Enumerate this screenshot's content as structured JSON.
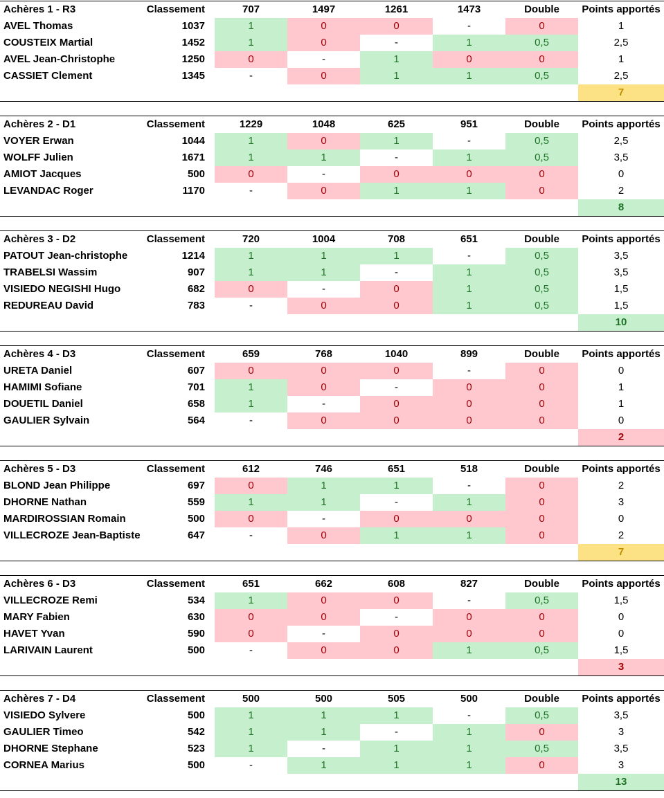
{
  "columns": {
    "classement_label": "Classement",
    "double_label": "Double",
    "points_label": "Points apportés"
  },
  "colors": {
    "win_bg": "#C6EFCE",
    "win_text": "#1E7125",
    "loss_bg": "#FFC7CE",
    "loss_text": "#9C0006",
    "yellow_bg": "#FCE285",
    "yellow_text": "#BF8F00"
  },
  "teams": [
    {
      "title": "Achères 1 - R3",
      "opponents": [
        "707",
        "1497",
        "1261",
        "1473"
      ],
      "players": [
        {
          "name": "AVEL Thomas",
          "classement": "1037",
          "results": [
            "1",
            "0",
            "0",
            "-"
          ],
          "double": "0",
          "points": "1"
        },
        {
          "name": "COUSTEIX Martial",
          "classement": "1452",
          "results": [
            "1",
            "0",
            "-",
            "1"
          ],
          "double": "0,5",
          "points": "2,5"
        },
        {
          "name": "AVEL Jean-Christophe",
          "classement": "1250",
          "results": [
            "0",
            "-",
            "1",
            "0"
          ],
          "double": "0",
          "points": "1"
        },
        {
          "name": "CASSIET Clement",
          "classement": "1345",
          "results": [
            "-",
            "0",
            "1",
            "1"
          ],
          "double": "0,5",
          "points": "2,5"
        }
      ],
      "total": {
        "value": "7",
        "status": "yellow"
      }
    },
    {
      "title": "Achères 2 - D1",
      "opponents": [
        "1229",
        "1048",
        "625",
        "951"
      ],
      "players": [
        {
          "name": "VOYER Erwan",
          "classement": "1044",
          "results": [
            "1",
            "0",
            "1",
            "-"
          ],
          "double": "0,5",
          "points": "2,5"
        },
        {
          "name": "WOLFF Julien",
          "classement": "1671",
          "results": [
            "1",
            "1",
            "-",
            "1"
          ],
          "double": "0,5",
          "points": "3,5"
        },
        {
          "name": "AMIOT Jacques",
          "classement": "500",
          "results": [
            "0",
            "-",
            "0",
            "0"
          ],
          "double": "0",
          "points": "0"
        },
        {
          "name": "LEVANDAC Roger",
          "classement": "1170",
          "results": [
            "-",
            "0",
            "1",
            "1"
          ],
          "double": "0",
          "points": "2"
        }
      ],
      "total": {
        "value": "8",
        "status": "green"
      }
    },
    {
      "title": "Achères 3 - D2",
      "opponents": [
        "720",
        "1004",
        "708",
        "651"
      ],
      "players": [
        {
          "name": "PATOUT Jean-christophe",
          "classement": "1214",
          "results": [
            "1",
            "1",
            "1",
            "-"
          ],
          "double": "0,5",
          "points": "3,5"
        },
        {
          "name": "TRABELSI Wassim",
          "classement": "907",
          "results": [
            "1",
            "1",
            "-",
            "1"
          ],
          "double": "0,5",
          "points": "3,5"
        },
        {
          "name": "VISIEDO NEGISHI Hugo",
          "classement": "682",
          "results": [
            "0",
            "-",
            "0",
            "1"
          ],
          "double": "0,5",
          "points": "1,5"
        },
        {
          "name": "REDUREAU David",
          "classement": "783",
          "results": [
            "-",
            "0",
            "0",
            "1"
          ],
          "double": "0,5",
          "points": "1,5"
        }
      ],
      "total": {
        "value": "10",
        "status": "green"
      }
    },
    {
      "title": "Achères 4 - D3",
      "opponents": [
        "659",
        "768",
        "1040",
        "899"
      ],
      "players": [
        {
          "name": "URETA Daniel",
          "classement": "607",
          "results": [
            "0",
            "0",
            "0",
            "-"
          ],
          "double": "0",
          "points": "0"
        },
        {
          "name": "HAMIMI Sofiane",
          "classement": "701",
          "results": [
            "1",
            "0",
            "-",
            "0"
          ],
          "double": "0",
          "points": "1"
        },
        {
          "name": "DOUETIL Daniel",
          "classement": "658",
          "results": [
            "1",
            "-",
            "0",
            "0"
          ],
          "double": "0",
          "points": "1"
        },
        {
          "name": "GAULIER Sylvain",
          "classement": "564",
          "results": [
            "-",
            "0",
            "0",
            "0"
          ],
          "double": "0",
          "points": "0"
        }
      ],
      "total": {
        "value": "2",
        "status": "red"
      }
    },
    {
      "title": "Achères 5 - D3",
      "opponents": [
        "612",
        "746",
        "651",
        "518"
      ],
      "players": [
        {
          "name": "BLOND Jean Philippe",
          "classement": "697",
          "results": [
            "0",
            "1",
            "1",
            "-"
          ],
          "double": "0",
          "points": "2"
        },
        {
          "name": "DHORNE Nathan",
          "classement": "559",
          "results": [
            "1",
            "1",
            "-",
            "1"
          ],
          "double": "0",
          "points": "3"
        },
        {
          "name": "MARDIROSSIAN Romain",
          "classement": "500",
          "results": [
            "0",
            "-",
            "0",
            "0"
          ],
          "double": "0",
          "points": "0"
        },
        {
          "name": "VILLECROZE Jean-Baptiste",
          "classement": "647",
          "results": [
            "-",
            "0",
            "1",
            "1"
          ],
          "double": "0",
          "points": "2"
        }
      ],
      "total": {
        "value": "7",
        "status": "yellow"
      }
    },
    {
      "title": "Achères 6 - D3",
      "opponents": [
        "651",
        "662",
        "608",
        "827"
      ],
      "players": [
        {
          "name": "VILLECROZE Remi",
          "classement": "534",
          "results": [
            "1",
            "0",
            "0",
            "-"
          ],
          "double": "0,5",
          "points": "1,5"
        },
        {
          "name": "MARY Fabien",
          "classement": "630",
          "results": [
            "0",
            "0",
            "-",
            "0"
          ],
          "double": "0",
          "points": "0"
        },
        {
          "name": "HAVET Yvan",
          "classement": "590",
          "results": [
            "0",
            "-",
            "0",
            "0"
          ],
          "double": "0",
          "points": "0"
        },
        {
          "name": "LARIVAIN Laurent",
          "classement": "500",
          "results": [
            "-",
            "0",
            "0",
            "1"
          ],
          "double": "0,5",
          "points": "1,5"
        }
      ],
      "total": {
        "value": "3",
        "status": "red"
      }
    },
    {
      "title": "Achères 7 - D4",
      "opponents": [
        "500",
        "500",
        "505",
        "500"
      ],
      "players": [
        {
          "name": "VISIEDO Sylvere",
          "classement": "500",
          "results": [
            "1",
            "1",
            "1",
            "-"
          ],
          "double": "0,5",
          "points": "3,5"
        },
        {
          "name": "GAULIER Timeo",
          "classement": "542",
          "results": [
            "1",
            "1",
            "-",
            "1"
          ],
          "double": "0",
          "points": "3"
        },
        {
          "name": "DHORNE Stephane",
          "classement": "523",
          "results": [
            "1",
            "-",
            "1",
            "1"
          ],
          "double": "0,5",
          "points": "3,5"
        },
        {
          "name": "CORNEA Marius",
          "classement": "500",
          "results": [
            "-",
            "1",
            "1",
            "1"
          ],
          "double": "0",
          "points": "3"
        }
      ],
      "total": {
        "value": "13",
        "status": "green"
      }
    }
  ]
}
